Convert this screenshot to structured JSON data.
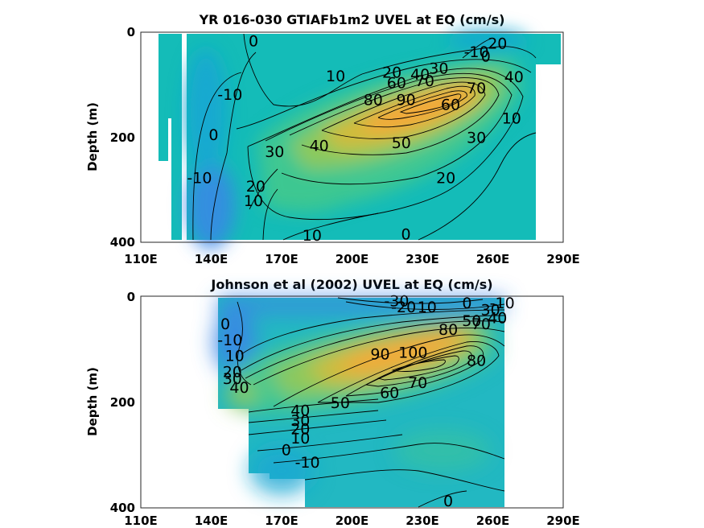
{
  "chart_data": [
    {
      "type": "heatmap",
      "title": "YR 016-030 GTIAFb1m2 UVEL at EQ (cm/s)",
      "ylabel": "Depth (m)",
      "xlabel": "",
      "xlim": [
        110,
        290
      ],
      "ylim": [
        400,
        0
      ],
      "x_ticks": [
        "110E",
        "140E",
        "170E",
        "200E",
        "230E",
        "260E",
        "290E"
      ],
      "y_ticks": [
        "0",
        "200",
        "400"
      ],
      "colormap": [
        "#3b86e6",
        "#1aa7d3",
        "#13bdb9",
        "#3fc792",
        "#8dc95c",
        "#d2bb3a",
        "#f5a83a"
      ],
      "background": "#14bcb8",
      "contour_labels": [
        {
          "text": "0",
          "lon": 158,
          "depth": 16
        },
        {
          "text": "-10",
          "lon": 148,
          "depth": 118
        },
        {
          "text": "0",
          "lon": 141,
          "depth": 195
        },
        {
          "text": "-10",
          "lon": 135,
          "depth": 277
        },
        {
          "text": "30",
          "lon": 167,
          "depth": 227
        },
        {
          "text": "20",
          "lon": 159,
          "depth": 293
        },
        {
          "text": "10",
          "lon": 158,
          "depth": 320
        },
        {
          "text": "40",
          "lon": 186,
          "depth": 215
        },
        {
          "text": "10",
          "lon": 193,
          "depth": 83
        },
        {
          "text": "20",
          "lon": 217,
          "depth": 76
        },
        {
          "text": "40",
          "lon": 229,
          "depth": 80
        },
        {
          "text": "30",
          "lon": 237,
          "depth": 68
        },
        {
          "text": "60",
          "lon": 219,
          "depth": 96
        },
        {
          "text": "70",
          "lon": 231,
          "depth": 92
        },
        {
          "text": "90",
          "lon": 223,
          "depth": 128
        },
        {
          "text": "80",
          "lon": 209,
          "depth": 128
        },
        {
          "text": "50",
          "lon": 221,
          "depth": 210
        },
        {
          "text": "60",
          "lon": 242,
          "depth": 137
        },
        {
          "text": "70",
          "lon": 253,
          "depth": 106
        },
        {
          "text": "40",
          "lon": 269,
          "depth": 84
        },
        {
          "text": "30",
          "lon": 253,
          "depth": 200
        },
        {
          "text": "20",
          "lon": 240,
          "depth": 277
        },
        {
          "text": "10",
          "lon": 268,
          "depth": 163
        },
        {
          "text": "20",
          "lon": 262,
          "depth": 21
        },
        {
          "text": "-10",
          "lon": 253,
          "depth": 37
        },
        {
          "text": "0",
          "lon": 257,
          "depth": 45
        },
        {
          "text": "10",
          "lon": 183,
          "depth": 386
        },
        {
          "text": "0",
          "lon": 223,
          "depth": 384
        }
      ]
    },
    {
      "type": "heatmap",
      "title": "Johnson et al (2002) UVEL at EQ (cm/s)",
      "ylabel": "Depth (m)",
      "xlabel": "",
      "xlim": [
        110,
        290
      ],
      "ylim": [
        400,
        0
      ],
      "x_ticks": [
        "110E",
        "140E",
        "170E",
        "200E",
        "230E",
        "260E",
        "290E"
      ],
      "y_ticks": [
        "0",
        "200",
        "400"
      ],
      "colormap": [
        "#3b86e6",
        "#1aa7d3",
        "#13bdb9",
        "#3fc792",
        "#8dc95c",
        "#d2bb3a",
        "#f5a83a"
      ],
      "background": "#22b8c2",
      "contour_labels": [
        {
          "text": "-30",
          "lon": 219,
          "depth": 8
        },
        {
          "text": "-20",
          "lon": 222,
          "depth": 20
        },
        {
          "text": "10",
          "lon": 232,
          "depth": 20
        },
        {
          "text": "0",
          "lon": 249,
          "depth": 12
        },
        {
          "text": "-10",
          "lon": 264,
          "depth": 12
        },
        {
          "text": "50",
          "lon": 251,
          "depth": 46
        },
        {
          "text": "40",
          "lon": 262,
          "depth": 40
        },
        {
          "text": "30",
          "lon": 259,
          "depth": 25
        },
        {
          "text": "70",
          "lon": 255,
          "depth": 52
        },
        {
          "text": "80",
          "lon": 241,
          "depth": 62
        },
        {
          "text": "0",
          "lon": 146,
          "depth": 52
        },
        {
          "text": "-10",
          "lon": 148,
          "depth": 82
        },
        {
          "text": "10",
          "lon": 150,
          "depth": 112
        },
        {
          "text": "20",
          "lon": 149,
          "depth": 142
        },
        {
          "text": "30",
          "lon": 149,
          "depth": 155
        },
        {
          "text": "40",
          "lon": 152,
          "depth": 172
        },
        {
          "text": "90",
          "lon": 212,
          "depth": 109
        },
        {
          "text": "100",
          "lon": 226,
          "depth": 106
        },
        {
          "text": "80",
          "lon": 253,
          "depth": 121
        },
        {
          "text": "70",
          "lon": 228,
          "depth": 163
        },
        {
          "text": "60",
          "lon": 216,
          "depth": 182
        },
        {
          "text": "50",
          "lon": 195,
          "depth": 201
        },
        {
          "text": "40",
          "lon": 178,
          "depth": 215
        },
        {
          "text": "30",
          "lon": 178,
          "depth": 234
        },
        {
          "text": "20",
          "lon": 178,
          "depth": 250
        },
        {
          "text": "10",
          "lon": 178,
          "depth": 268
        },
        {
          "text": "0",
          "lon": 172,
          "depth": 290
        },
        {
          "text": "-10",
          "lon": 181,
          "depth": 313
        },
        {
          "text": "0",
          "lon": 241,
          "depth": 386
        }
      ]
    }
  ]
}
